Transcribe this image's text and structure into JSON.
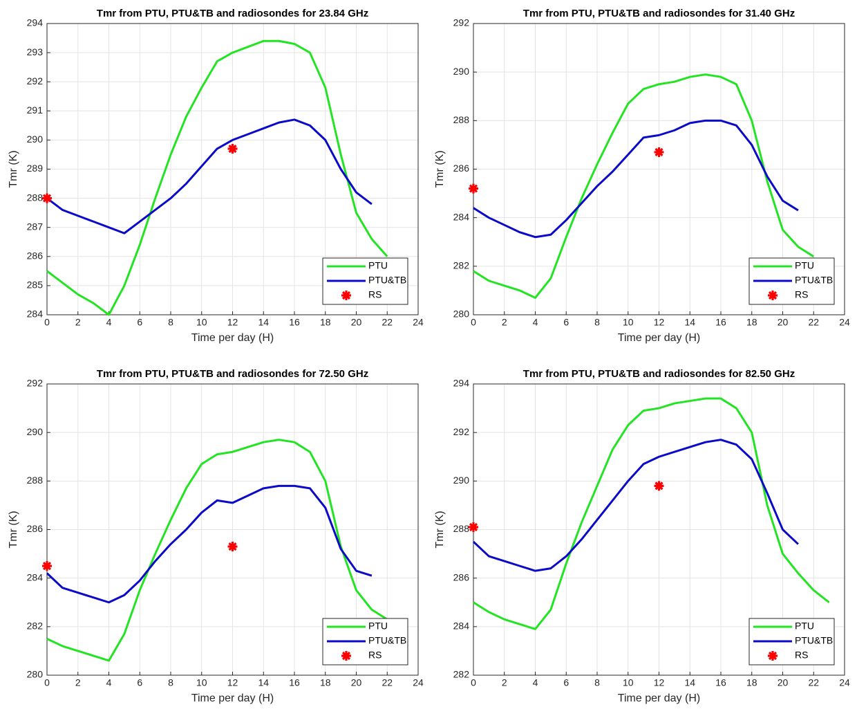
{
  "chart_data": [
    {
      "type": "line",
      "title": "Tmr from PTU, PTU&TB and radiosondes for 23.84 GHz",
      "xlabel": "Time per day (H)",
      "ylabel": "Tmr (K)",
      "xlim": [
        0,
        24
      ],
      "xticks": [
        0,
        2,
        4,
        6,
        8,
        10,
        12,
        14,
        16,
        18,
        20,
        22,
        24
      ],
      "ylim": [
        284,
        294
      ],
      "yticks": [
        284,
        285,
        286,
        287,
        288,
        289,
        290,
        291,
        292,
        293,
        294
      ],
      "grid": true,
      "legend": "lower right",
      "series": [
        {
          "name": "PTU",
          "color": "#22e422",
          "mode": "line",
          "x": [
            0,
            1,
            2,
            3,
            4,
            5,
            6,
            7,
            8,
            9,
            10,
            11,
            12,
            13,
            14,
            15,
            16,
            17,
            18,
            19,
            20,
            21,
            22
          ],
          "values": [
            285.5,
            285.1,
            284.7,
            284.4,
            284.0,
            285.0,
            286.4,
            288.0,
            289.5,
            290.8,
            291.8,
            292.7,
            293.0,
            293.2,
            293.4,
            293.4,
            293.3,
            293.0,
            291.8,
            289.5,
            287.5,
            286.6,
            286.0
          ]
        },
        {
          "name": "PTU&TB",
          "color": "#0a0ac8",
          "mode": "line",
          "x": [
            0,
            1,
            2,
            3,
            4,
            5,
            6,
            7,
            8,
            9,
            10,
            11,
            12,
            13,
            14,
            15,
            16,
            17,
            18,
            19,
            20,
            21
          ],
          "values": [
            288.0,
            287.6,
            287.4,
            287.2,
            287.0,
            286.8,
            287.2,
            287.6,
            288.0,
            288.5,
            289.1,
            289.7,
            290.0,
            290.2,
            290.4,
            290.6,
            290.7,
            290.5,
            290.0,
            289.0,
            288.2,
            287.8
          ]
        },
        {
          "name": "RS",
          "color": "#ff0000",
          "mode": "markers",
          "x": [
            0,
            12
          ],
          "values": [
            288.0,
            289.7
          ]
        }
      ]
    },
    {
      "type": "line",
      "title": "Tmr from PTU, PTU&TB and radiosondes for 31.40 GHz",
      "xlabel": "Time per day (H)",
      "ylabel": "Tmr (K)",
      "xlim": [
        0,
        24
      ],
      "xticks": [
        0,
        2,
        4,
        6,
        8,
        10,
        12,
        14,
        16,
        18,
        20,
        22,
        24
      ],
      "ylim": [
        280,
        292
      ],
      "yticks": [
        280,
        282,
        284,
        286,
        288,
        290,
        292
      ],
      "grid": true,
      "legend": "lower right",
      "series": [
        {
          "name": "PTU",
          "color": "#22e422",
          "mode": "line",
          "x": [
            0,
            1,
            2,
            3,
            4,
            5,
            6,
            7,
            8,
            9,
            10,
            11,
            12,
            13,
            14,
            15,
            16,
            17,
            18,
            19,
            20,
            21,
            22
          ],
          "values": [
            281.8,
            281.4,
            281.2,
            281.0,
            280.7,
            281.5,
            283.2,
            284.8,
            286.2,
            287.5,
            288.7,
            289.3,
            289.5,
            289.6,
            289.8,
            289.9,
            289.8,
            289.5,
            288.0,
            285.5,
            283.5,
            282.8,
            282.4
          ]
        },
        {
          "name": "PTU&TB",
          "color": "#0a0ac8",
          "mode": "line",
          "x": [
            0,
            1,
            2,
            3,
            4,
            5,
            6,
            7,
            8,
            9,
            10,
            11,
            12,
            13,
            14,
            15,
            16,
            17,
            18,
            19,
            20,
            21
          ],
          "values": [
            284.4,
            284.0,
            283.7,
            283.4,
            283.2,
            283.3,
            283.9,
            284.6,
            285.3,
            285.9,
            286.6,
            287.3,
            287.4,
            287.6,
            287.9,
            288.0,
            288.0,
            287.8,
            287.0,
            285.7,
            284.7,
            284.3
          ]
        },
        {
          "name": "RS",
          "color": "#ff0000",
          "mode": "markers",
          "x": [
            0,
            12
          ],
          "values": [
            285.2,
            286.7
          ]
        }
      ]
    },
    {
      "type": "line",
      "title": "Tmr from PTU, PTU&TB and radiosondes for 72.50 GHz",
      "xlabel": "Time per day (H)",
      "ylabel": "Tmr (K)",
      "xlim": [
        0,
        24
      ],
      "xticks": [
        0,
        2,
        4,
        6,
        8,
        10,
        12,
        14,
        16,
        18,
        20,
        22,
        24
      ],
      "ylim": [
        280,
        292
      ],
      "yticks": [
        280,
        282,
        284,
        286,
        288,
        290,
        292
      ],
      "grid": true,
      "legend": "lower right",
      "series": [
        {
          "name": "PTU",
          "color": "#22e422",
          "mode": "line",
          "x": [
            0,
            1,
            2,
            3,
            4,
            5,
            6,
            7,
            8,
            9,
            10,
            11,
            12,
            13,
            14,
            15,
            16,
            17,
            18,
            19,
            20,
            21,
            22
          ],
          "values": [
            281.5,
            281.2,
            281.0,
            280.8,
            280.6,
            281.7,
            283.5,
            285.0,
            286.4,
            287.7,
            288.7,
            289.1,
            289.2,
            289.4,
            289.6,
            289.7,
            289.6,
            289.2,
            288.0,
            285.3,
            283.5,
            282.7,
            282.3
          ]
        },
        {
          "name": "PTU&TB",
          "color": "#0a0ac8",
          "mode": "line",
          "x": [
            0,
            1,
            2,
            3,
            4,
            5,
            6,
            7,
            8,
            9,
            10,
            11,
            12,
            13,
            14,
            15,
            16,
            17,
            18,
            19,
            20,
            21
          ],
          "values": [
            284.2,
            283.6,
            283.4,
            283.2,
            283.0,
            283.3,
            283.9,
            284.7,
            285.4,
            286.0,
            286.7,
            287.2,
            287.1,
            287.4,
            287.7,
            287.8,
            287.8,
            287.7,
            286.9,
            285.2,
            284.3,
            284.1
          ]
        },
        {
          "name": "RS",
          "color": "#ff0000",
          "mode": "markers",
          "x": [
            0,
            12
          ],
          "values": [
            284.5,
            285.3
          ]
        }
      ]
    },
    {
      "type": "line",
      "title": "Tmr from PTU, PTU&TB and radiosondes for 82.50 GHz",
      "xlabel": "Time per day (H)",
      "ylabel": "Tmr (K)",
      "xlim": [
        0,
        24
      ],
      "xticks": [
        0,
        2,
        4,
        6,
        8,
        10,
        12,
        14,
        16,
        18,
        20,
        22,
        24
      ],
      "ylim": [
        282,
        294
      ],
      "yticks": [
        282,
        284,
        286,
        288,
        290,
        292,
        294
      ],
      "grid": true,
      "legend": "lower right",
      "series": [
        {
          "name": "PTU",
          "color": "#22e422",
          "mode": "line",
          "x": [
            0,
            1,
            2,
            3,
            4,
            5,
            6,
            7,
            8,
            9,
            10,
            11,
            12,
            13,
            14,
            15,
            16,
            17,
            18,
            19,
            20,
            21,
            22,
            23
          ],
          "values": [
            285.0,
            284.6,
            284.3,
            284.1,
            283.9,
            284.7,
            286.6,
            288.3,
            289.8,
            291.3,
            292.3,
            292.9,
            293.0,
            293.2,
            293.3,
            293.4,
            293.4,
            293.0,
            292.0,
            289.0,
            287.0,
            286.2,
            285.5,
            285.0
          ]
        },
        {
          "name": "PTU&TB",
          "color": "#0a0ac8",
          "mode": "line",
          "x": [
            0,
            1,
            2,
            3,
            4,
            5,
            6,
            7,
            8,
            9,
            10,
            11,
            12,
            13,
            14,
            15,
            16,
            17,
            18,
            19,
            20,
            21
          ],
          "values": [
            287.5,
            286.9,
            286.7,
            286.5,
            286.3,
            286.4,
            286.9,
            287.6,
            288.4,
            289.2,
            290.0,
            290.7,
            291.0,
            291.2,
            291.4,
            291.6,
            291.7,
            291.5,
            290.9,
            289.5,
            288.0,
            287.4
          ]
        },
        {
          "name": "RS",
          "color": "#ff0000",
          "mode": "markers",
          "x": [
            0,
            12
          ],
          "values": [
            288.1,
            289.8
          ]
        }
      ]
    }
  ]
}
